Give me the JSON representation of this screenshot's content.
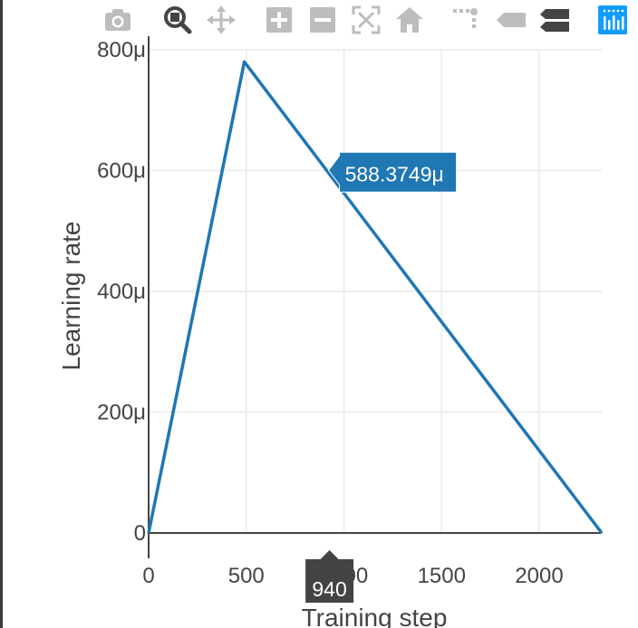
{
  "modebar": {
    "buttons": [
      {
        "name": "camera-icon",
        "active": false
      },
      {
        "name": "zoom-icon",
        "active": true
      },
      {
        "name": "pan-icon",
        "active": false
      },
      {
        "name": "zoom-in-icon",
        "active": false
      },
      {
        "name": "zoom-out-icon",
        "active": false
      },
      {
        "name": "autoscale-icon",
        "active": false
      },
      {
        "name": "reset-axes-icon",
        "active": false
      },
      {
        "name": "spike-lines-icon",
        "active": false
      },
      {
        "name": "hover-closest-icon",
        "active": false
      },
      {
        "name": "hover-compare-icon",
        "active": true
      },
      {
        "name": "plotly-logo-icon",
        "active": false
      }
    ],
    "icon_color": "#bdbdbd",
    "active_color": "#444444",
    "logo_color": "#119dff"
  },
  "hover": {
    "y_label": "588.3749μ",
    "x_label": "940",
    "y_box_color": "#1f77b4",
    "x_box_color": "#444444"
  },
  "chart_data": {
    "type": "line",
    "series": [
      {
        "values_x": [
          0,
          490,
          2320
        ],
        "values_y": [
          0,
          0.00078,
          0
        ],
        "color": "#1f77b4"
      }
    ],
    "x": [
      0,
      490,
      2320
    ],
    "xlabel": "Training step",
    "ylabel": "Learning rate",
    "xlim": [
      0,
      2320
    ],
    "ylim": [
      0,
      0.0008
    ],
    "x_ticks": [
      0,
      500,
      1000,
      1500,
      2000
    ],
    "x_tick_labels": [
      "0",
      "500",
      "1000",
      "1500",
      "2000"
    ],
    "y_ticks": [
      0,
      0.0002,
      0.0004,
      0.0006,
      0.0008
    ],
    "y_tick_labels": [
      "0",
      "200μ",
      "400μ",
      "600μ",
      "800μ"
    ],
    "grid": true,
    "hover_x": 940,
    "hover_y": 0.0005883749
  }
}
